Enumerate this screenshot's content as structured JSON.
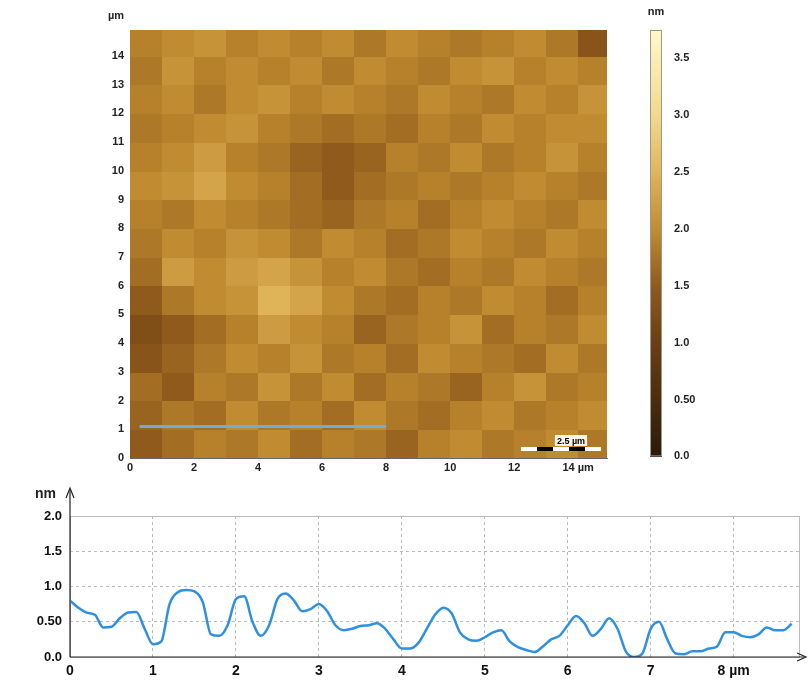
{
  "chart_data": [
    {
      "type": "heatmap",
      "y_label": "µm",
      "xlim": [
        0,
        14.9
      ],
      "ylim": [
        0,
        14.9
      ],
      "xticks": [
        0,
        2,
        4,
        6,
        8,
        10,
        12,
        {
          "value": 14,
          "label": "14 µm"
        }
      ],
      "yticks": [
        0,
        1,
        2,
        3,
        4,
        5,
        6,
        7,
        8,
        9,
        10,
        11,
        12,
        13,
        14
      ],
      "cell_size": 1,
      "cells": [
        [
          1.5,
          1.7,
          1.9,
          1.8,
          2.0,
          1.7,
          1.9,
          1.8,
          1.6,
          1.9,
          2.0,
          1.8,
          1.9,
          2.0,
          1.8
        ],
        [
          1.6,
          1.8,
          1.7,
          2.0,
          1.8,
          1.9,
          1.7,
          2.0,
          1.8,
          1.7,
          1.9,
          2.0,
          1.8,
          1.9,
          2.0
        ],
        [
          1.7,
          1.5,
          1.9,
          1.8,
          2.1,
          1.8,
          2.0,
          1.7,
          1.9,
          1.8,
          1.6,
          1.9,
          2.1,
          1.8,
          1.9
        ],
        [
          1.4,
          1.6,
          1.8,
          2.0,
          1.9,
          2.1,
          1.8,
          1.9,
          1.7,
          2.0,
          1.9,
          1.8,
          1.7,
          2.0,
          1.8
        ],
        [
          1.3,
          1.5,
          1.7,
          1.9,
          2.2,
          2.0,
          1.9,
          1.6,
          1.8,
          1.9,
          2.1,
          1.7,
          1.9,
          1.8,
          2.0
        ],
        [
          1.5,
          1.8,
          2.0,
          2.1,
          2.5,
          2.3,
          2.0,
          1.8,
          1.7,
          1.9,
          1.8,
          2.0,
          1.9,
          1.7,
          1.9
        ],
        [
          1.7,
          2.2,
          2.0,
          2.2,
          2.3,
          2.1,
          1.9,
          2.0,
          1.8,
          1.7,
          1.9,
          1.8,
          2.0,
          1.9,
          1.8
        ],
        [
          1.8,
          2.0,
          1.9,
          2.1,
          2.0,
          1.8,
          2.0,
          1.9,
          1.7,
          1.8,
          2.0,
          1.9,
          1.8,
          2.0,
          1.9
        ],
        [
          1.9,
          1.8,
          2.0,
          1.9,
          1.8,
          1.7,
          1.6,
          1.8,
          1.9,
          1.7,
          1.9,
          2.0,
          1.9,
          1.8,
          2.0
        ],
        [
          2.0,
          2.1,
          2.3,
          2.0,
          1.9,
          1.7,
          1.5,
          1.7,
          1.8,
          1.9,
          1.8,
          1.9,
          2.0,
          1.9,
          1.8
        ],
        [
          1.9,
          2.0,
          2.2,
          1.9,
          1.8,
          1.6,
          1.5,
          1.6,
          1.9,
          1.8,
          2.0,
          1.8,
          1.9,
          2.1,
          1.9
        ],
        [
          1.8,
          1.9,
          2.0,
          2.1,
          1.9,
          1.8,
          1.7,
          1.8,
          1.7,
          1.9,
          1.8,
          2.0,
          1.9,
          2.0,
          2.0
        ],
        [
          1.9,
          2.0,
          1.8,
          2.0,
          2.1,
          1.9,
          2.0,
          1.9,
          1.8,
          2.0,
          1.9,
          1.8,
          2.0,
          1.9,
          2.1
        ],
        [
          1.8,
          2.1,
          1.9,
          2.0,
          1.9,
          2.0,
          1.8,
          2.0,
          1.9,
          1.8,
          2.0,
          2.1,
          1.9,
          2.0,
          1.9
        ],
        [
          1.9,
          2.0,
          2.1,
          1.9,
          2.0,
          1.9,
          2.0,
          1.8,
          2.0,
          1.9,
          1.8,
          1.9,
          2.0,
          1.8,
          1.4
        ]
      ],
      "colorbar": {
        "label": "nm",
        "range": [
          0,
          3.75
        ],
        "ticks": [
          {
            "value": 0,
            "label": "0.0"
          },
          {
            "value": 0.5,
            "label": "0.50"
          },
          {
            "value": 1,
            "label": "1.0"
          },
          1.5,
          {
            "value": 2,
            "label": "2.0"
          },
          2.5,
          {
            "value": 3,
            "label": "3.0"
          },
          3.5
        ]
      },
      "profile_line": {
        "x": [
          0.3,
          8.0
        ],
        "y": 1.1,
        "color": "#7ba7d8"
      },
      "scale_bar": {
        "length": 2.5,
        "label": "2.5 µm"
      },
      "grid": false
    },
    {
      "type": "line",
      "y_label": "nm",
      "xlim": [
        0,
        8.8
      ],
      "ylim": [
        0,
        2.0
      ],
      "xticks": [
        0,
        1,
        2,
        3,
        4,
        5,
        6,
        7,
        {
          "value": 8,
          "label": "8 µm"
        }
      ],
      "yticks": [
        {
          "value": 0,
          "label": "0.0"
        },
        {
          "value": 0.5,
          "label": "0.50"
        },
        {
          "value": 1,
          "label": "1.0"
        },
        1.5,
        {
          "value": 2,
          "label": "2.0"
        }
      ],
      "grid": true,
      "x": [
        0.0,
        0.1,
        0.2,
        0.3,
        0.4,
        0.5,
        0.6,
        0.7,
        0.8,
        0.9,
        1.0,
        1.1,
        1.2,
        1.3,
        1.4,
        1.5,
        1.6,
        1.7,
        1.8,
        1.9,
        2.0,
        2.1,
        2.2,
        2.3,
        2.4,
        2.5,
        2.6,
        2.7,
        2.8,
        2.9,
        3.0,
        3.1,
        3.2,
        3.3,
        3.4,
        3.5,
        3.6,
        3.7,
        3.8,
        3.9,
        4.0,
        4.1,
        4.2,
        4.3,
        4.4,
        4.5,
        4.6,
        4.7,
        4.8,
        4.9,
        5.0,
        5.1,
        5.2,
        5.3,
        5.4,
        5.5,
        5.6,
        5.7,
        5.8,
        5.9,
        6.0,
        6.1,
        6.2,
        6.3,
        6.4,
        6.5,
        6.6,
        6.7,
        6.8,
        6.9,
        7.0,
        7.1,
        7.2,
        7.3,
        7.4,
        7.5,
        7.6,
        7.7,
        7.8,
        7.9,
        8.0,
        8.1,
        8.2,
        8.3,
        8.4,
        8.5,
        8.6,
        8.7
      ],
      "series": [
        {
          "color": "#2f8fe0",
          "values": [
            0.8,
            0.7,
            0.63,
            0.6,
            0.42,
            0.43,
            0.55,
            0.63,
            0.64,
            0.4,
            0.18,
            0.22,
            0.75,
            0.92,
            0.95,
            0.93,
            0.78,
            0.32,
            0.3,
            0.45,
            0.82,
            0.86,
            0.5,
            0.3,
            0.45,
            0.82,
            0.9,
            0.8,
            0.65,
            0.68,
            0.75,
            0.65,
            0.45,
            0.38,
            0.4,
            0.44,
            0.45,
            0.48,
            0.4,
            0.25,
            0.12,
            0.12,
            0.2,
            0.4,
            0.6,
            0.7,
            0.62,
            0.35,
            0.25,
            0.23,
            0.28,
            0.35,
            0.38,
            0.22,
            0.14,
            0.1,
            0.07,
            0.15,
            0.25,
            0.3,
            0.45,
            0.58,
            0.48,
            0.3,
            0.4,
            0.55,
            0.4,
            0.08,
            0.0,
            0.05,
            0.4,
            0.5,
            0.25,
            0.05,
            0.04,
            0.08,
            0.08,
            0.12,
            0.15,
            0.35,
            0.35,
            0.3,
            0.28,
            0.32,
            0.42,
            0.38,
            0.38,
            0.47
          ]
        }
      ]
    }
  ]
}
